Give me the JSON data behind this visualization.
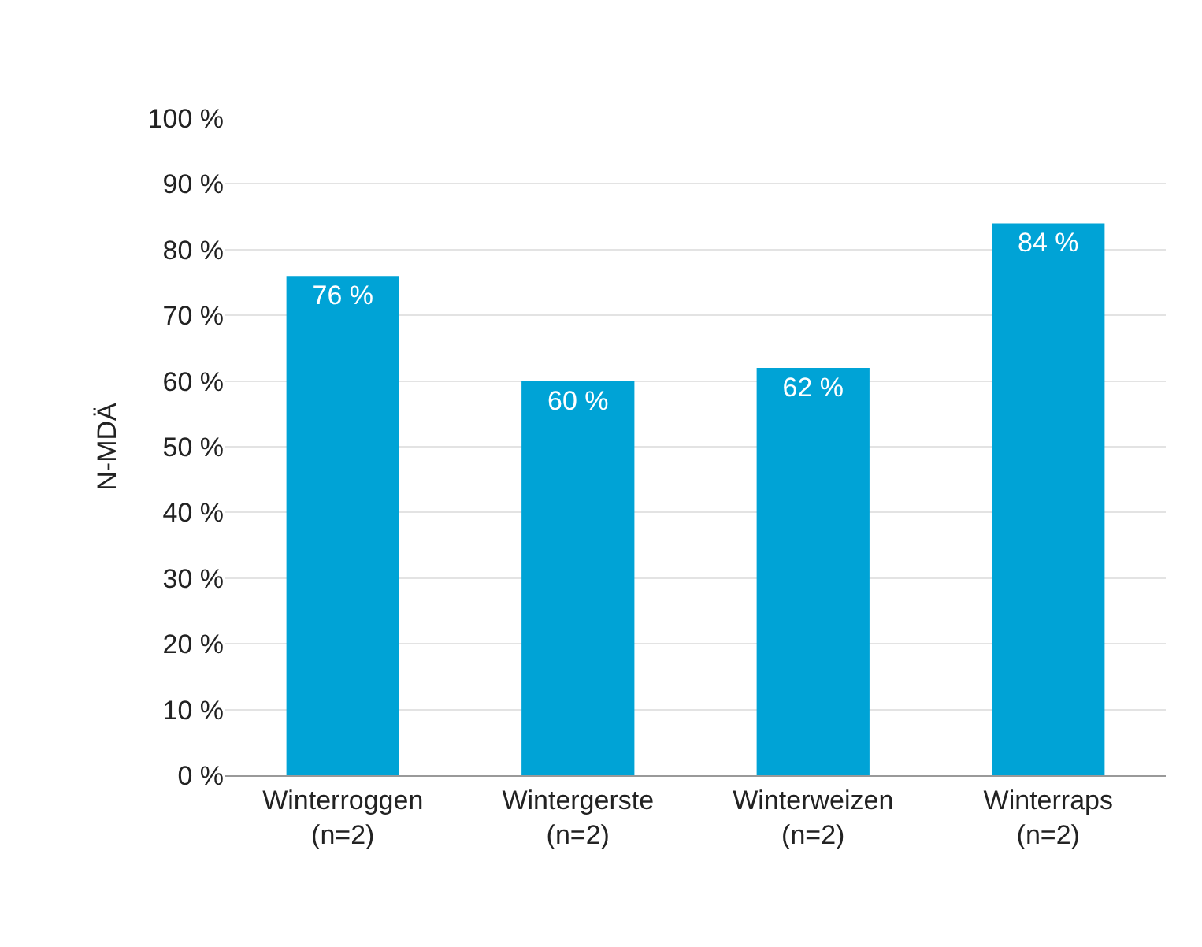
{
  "chart_data": {
    "type": "bar",
    "ylabel": "N-MDÄ",
    "categories": [
      "Winterroggen\n(n=2)",
      "Wintergerste\n(n=2)",
      "Winterweizen\n(n=2)",
      "Winterraps\n(n=2)"
    ],
    "values": [
      76,
      60,
      62,
      84
    ],
    "color": "#00a3d6",
    "value_labels": [
      "76 %",
      "60 %",
      "62 %",
      "84 %"
    ],
    "ylim": [
      0,
      100
    ],
    "yticks": [
      {
        "value": 0,
        "label": "0 %"
      },
      {
        "value": 10,
        "label": "10 %"
      },
      {
        "value": 20,
        "label": "20 %"
      },
      {
        "value": 30,
        "label": "30 %"
      },
      {
        "value": 40,
        "label": "40 %"
      },
      {
        "value": 50,
        "label": "50 %"
      },
      {
        "value": 60,
        "label": "60 %"
      },
      {
        "value": 70,
        "label": "70 %"
      },
      {
        "value": 80,
        "label": "80 %"
      },
      {
        "value": 90,
        "label": "90 %"
      },
      {
        "value": 100,
        "label": "100 %"
      }
    ],
    "grid": "y",
    "legend": false
  }
}
